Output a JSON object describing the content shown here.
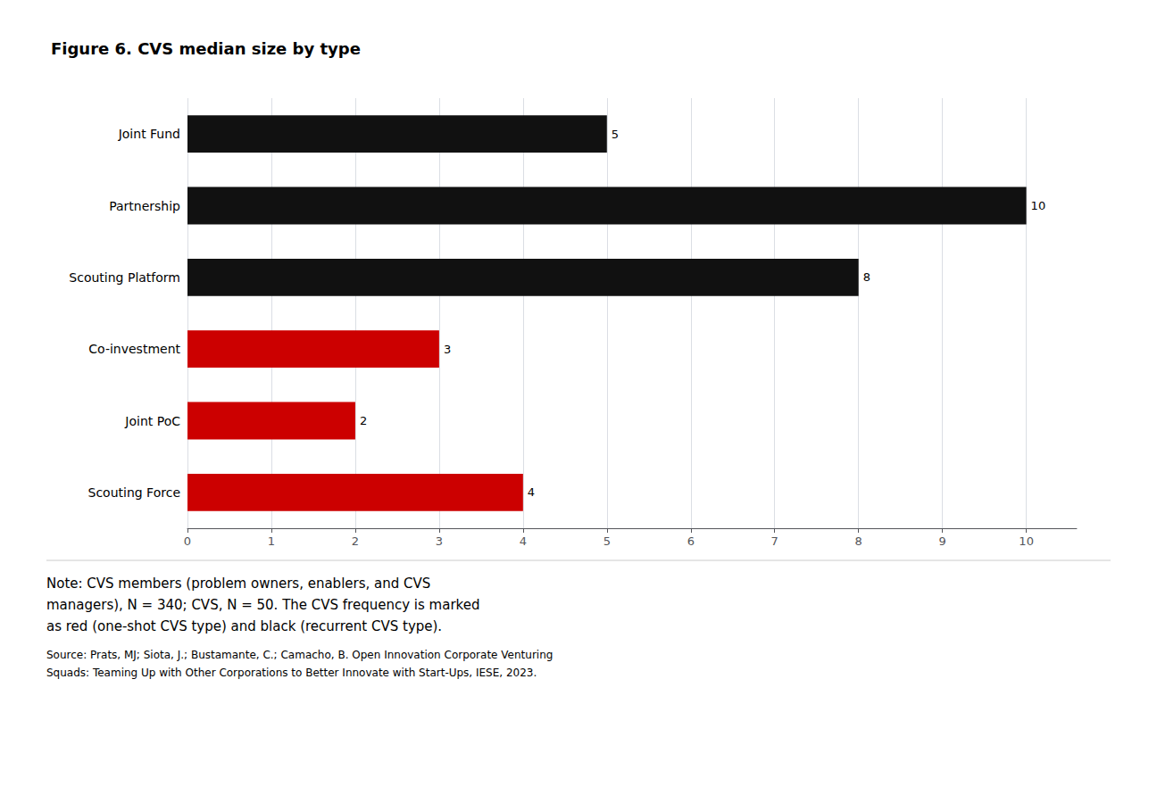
{
  "chart_data": {
    "type": "bar",
    "orientation": "horizontal",
    "title": "Figure 6. CVS median size by type",
    "categories": [
      "Scouting Force",
      "Joint PoC",
      "Co-investment",
      "Scouting Platform",
      "Partnership",
      "Joint Fund"
    ],
    "values": [
      4,
      2,
      3,
      8,
      10,
      5
    ],
    "colors": [
      "#cc0000",
      "#cc0000",
      "#cc0000",
      "#111111",
      "#111111",
      "#111111"
    ],
    "xlim": [
      0,
      10.6
    ],
    "xticks": [
      0,
      1,
      2,
      3,
      4,
      5,
      6,
      7,
      8,
      9,
      10
    ],
    "grid": true,
    "data_labels": true,
    "annotations": [
      "Note: CVS members (problem owners, enablers, and CVS",
      "managers), N = 340; CVS, N = 50. The CVS frequency is marked",
      "as red (one-shot CVS type) and black (recurrent CVS type).",
      "Source: Prats, MJ; Siota, J.; Bustamante, C.; Camacho, B. Open Innovation Corporate Venturing",
      "Squads: Teaming Up with Other Corporations to Better Innovate with Start-Ups, IESE, 2023."
    ]
  }
}
